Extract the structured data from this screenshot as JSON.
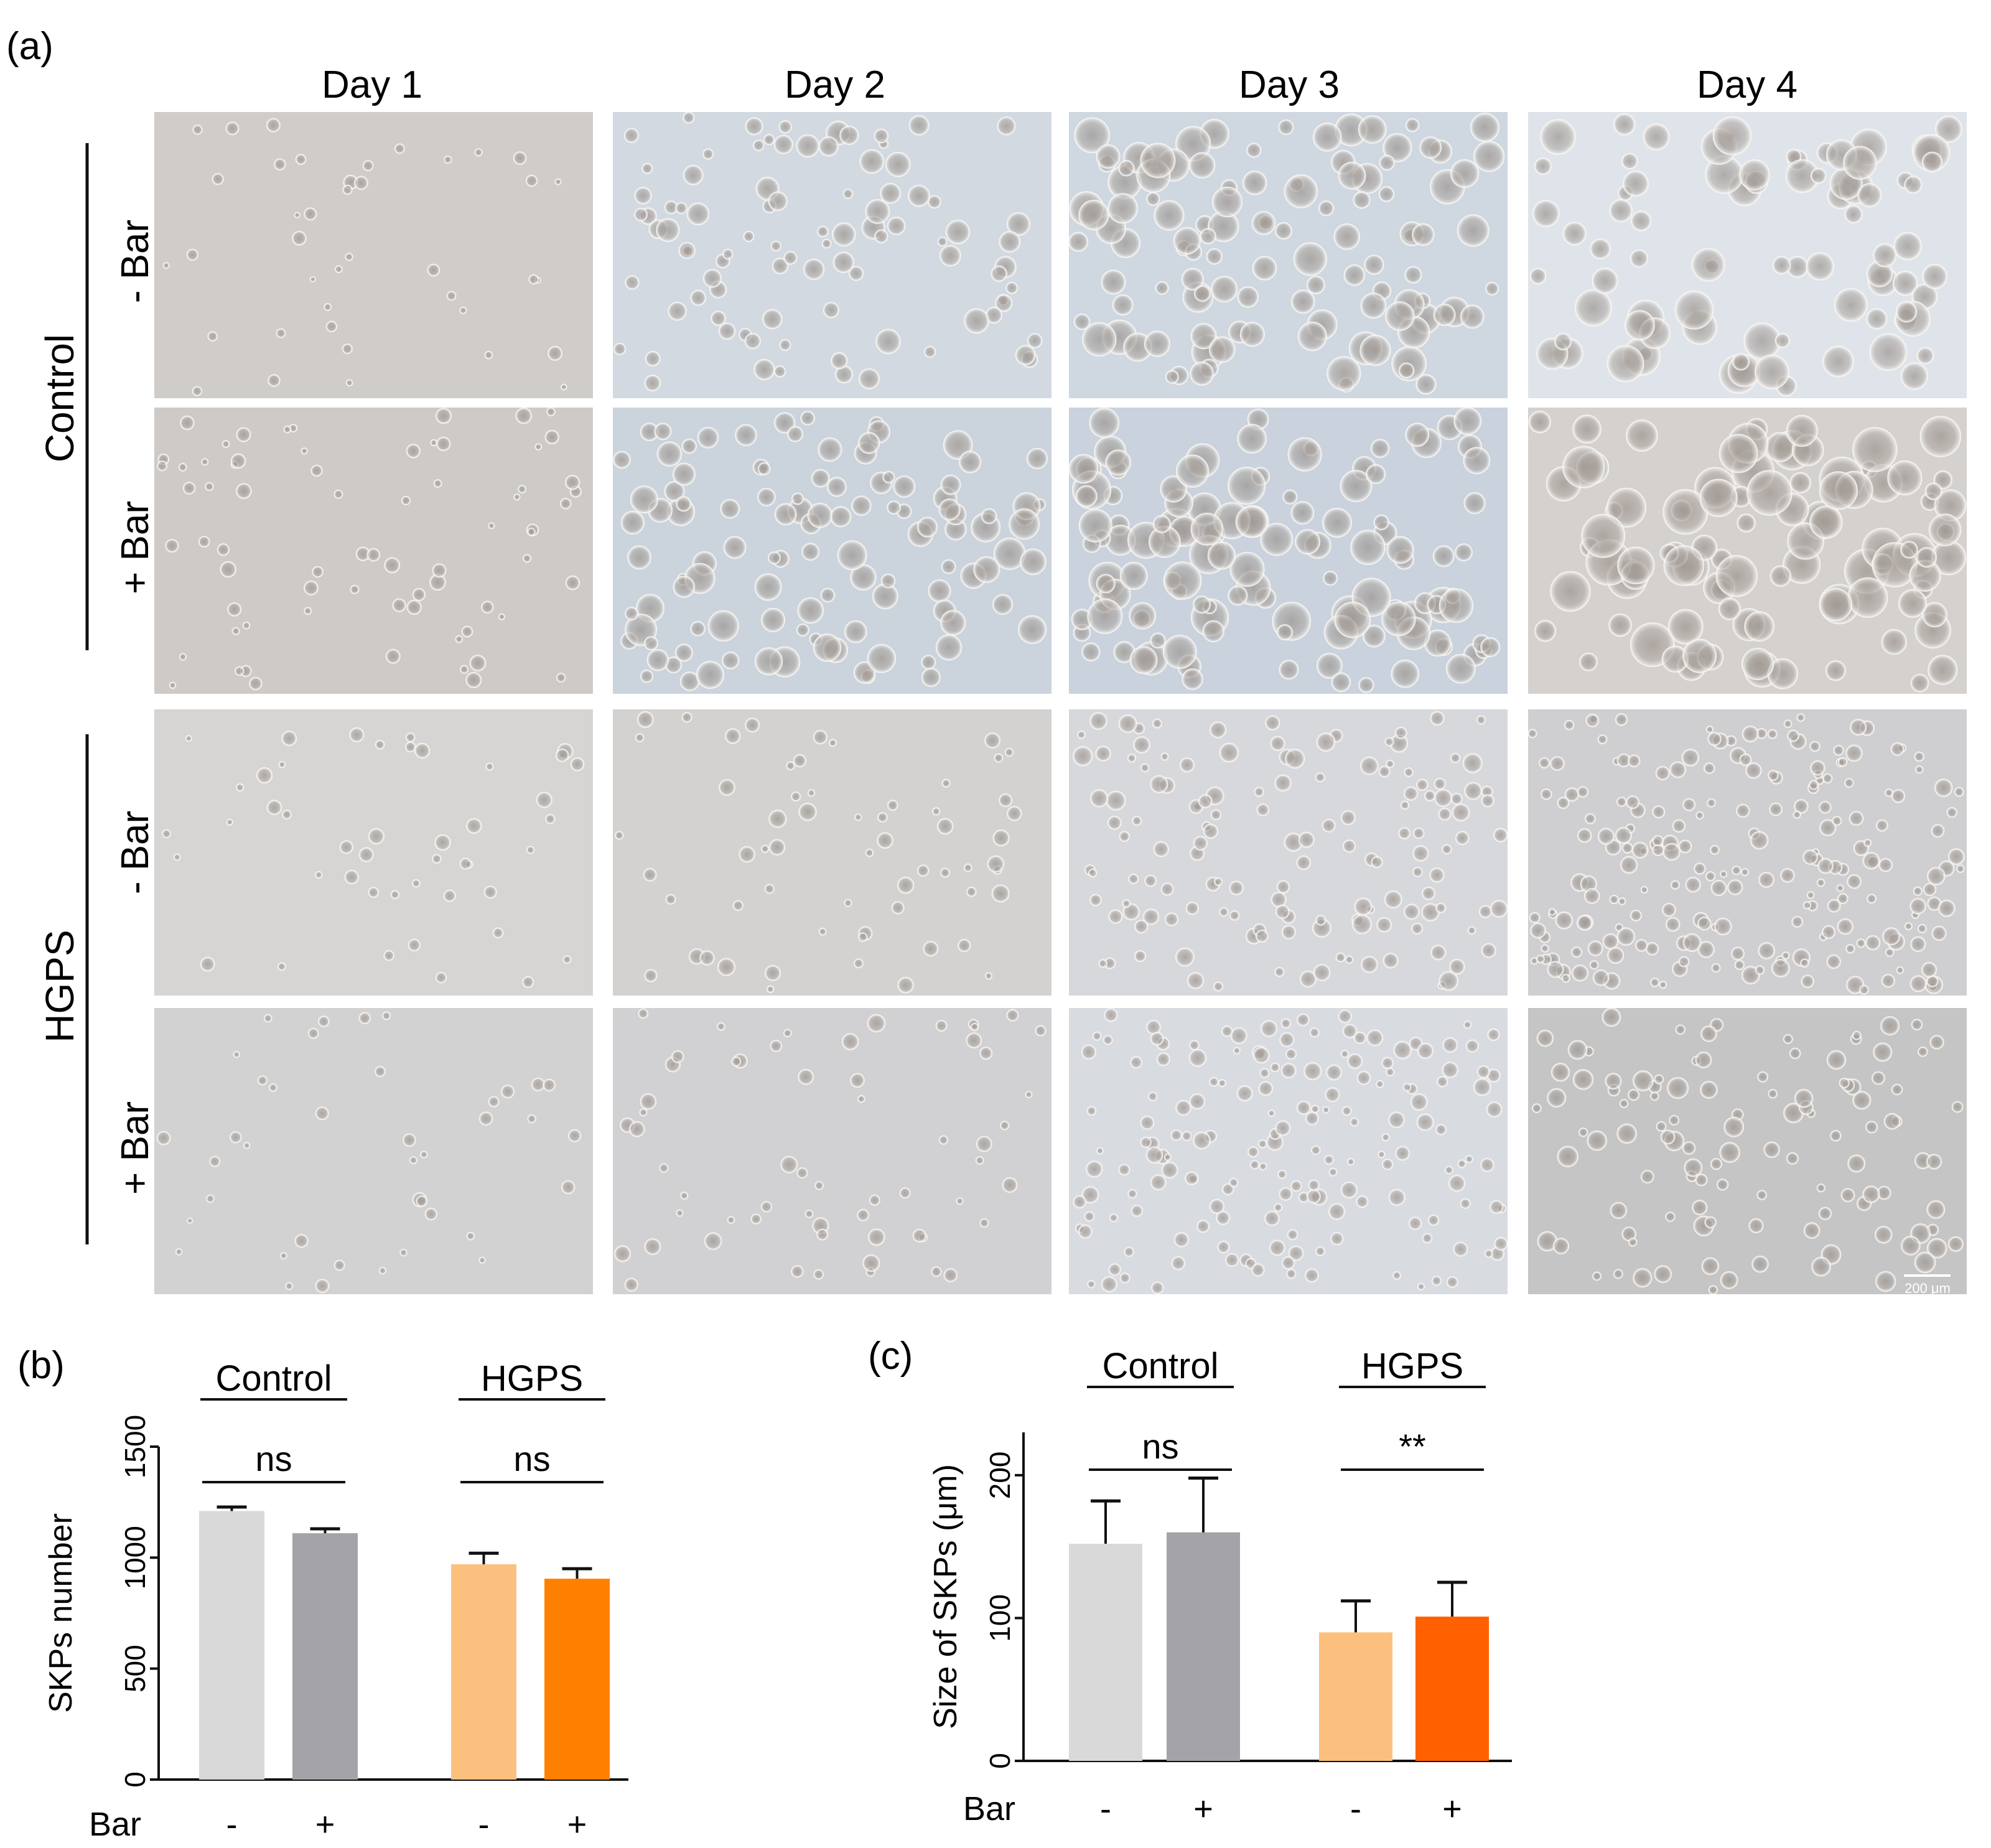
{
  "panel_a": {
    "label": "(a)",
    "columns": [
      "Day 1",
      "Day 2",
      "Day 3",
      "Day 4"
    ],
    "groups": [
      {
        "name": "Control",
        "rows": [
          "- Bar",
          "+ Bar"
        ]
      },
      {
        "name": "HGPS",
        "rows": [
          "- Bar",
          "+ Bar"
        ]
      }
    ],
    "scale_bar": "200 μm",
    "tile_tints": [
      [
        "#cfccc9",
        "#d2d9e0",
        "#cfd7e0",
        "#dfe4ea"
      ],
      [
        "#cdcac8",
        "#cbd3dc",
        "#c9d2dd",
        "#d4d1cf"
      ],
      [
        "#d6d5d3",
        "#d3d2d1",
        "#d7d8dc",
        "#cfcfd2"
      ],
      [
        "#d2d2d2",
        "#d1d0d2",
        "#d8dbe0",
        "#c5c5c5"
      ]
    ]
  },
  "chart_data": [
    {
      "panel": "(b)",
      "type": "bar",
      "ylabel": "SKPs number",
      "ylim": [
        0,
        1500
      ],
      "yticks": [
        0,
        500,
        1000,
        1500
      ],
      "xlabel": "Bar",
      "categories": [
        "-",
        "+",
        "-",
        "+"
      ],
      "values": [
        1210,
        1110,
        970,
        905
      ],
      "errors": [
        18,
        20,
        50,
        45
      ],
      "colors": [
        "#d9d9d9",
        "#a3a3a8",
        "#fcc07e",
        "#ff8000"
      ],
      "groups": [
        {
          "name": "Control",
          "significance": "ns"
        },
        {
          "name": "HGPS",
          "significance": "ns"
        }
      ]
    },
    {
      "panel": "(c)",
      "type": "bar",
      "ylabel": "Size of SKPs (μm)",
      "ylim": [
        0,
        230
      ],
      "yticks": [
        0,
        100,
        200
      ],
      "xlabel": "Bar",
      "categories": [
        "-",
        "+",
        "-",
        "+"
      ],
      "values": [
        152,
        160,
        90,
        101
      ],
      "errors": [
        30,
        38,
        22,
        24
      ],
      "colors": [
        "#d9d9d9",
        "#a3a3a8",
        "#fcc07e",
        "#ff6000"
      ],
      "groups": [
        {
          "name": "Control",
          "significance": "ns"
        },
        {
          "name": "HGPS",
          "significance": "**"
        }
      ]
    }
  ]
}
